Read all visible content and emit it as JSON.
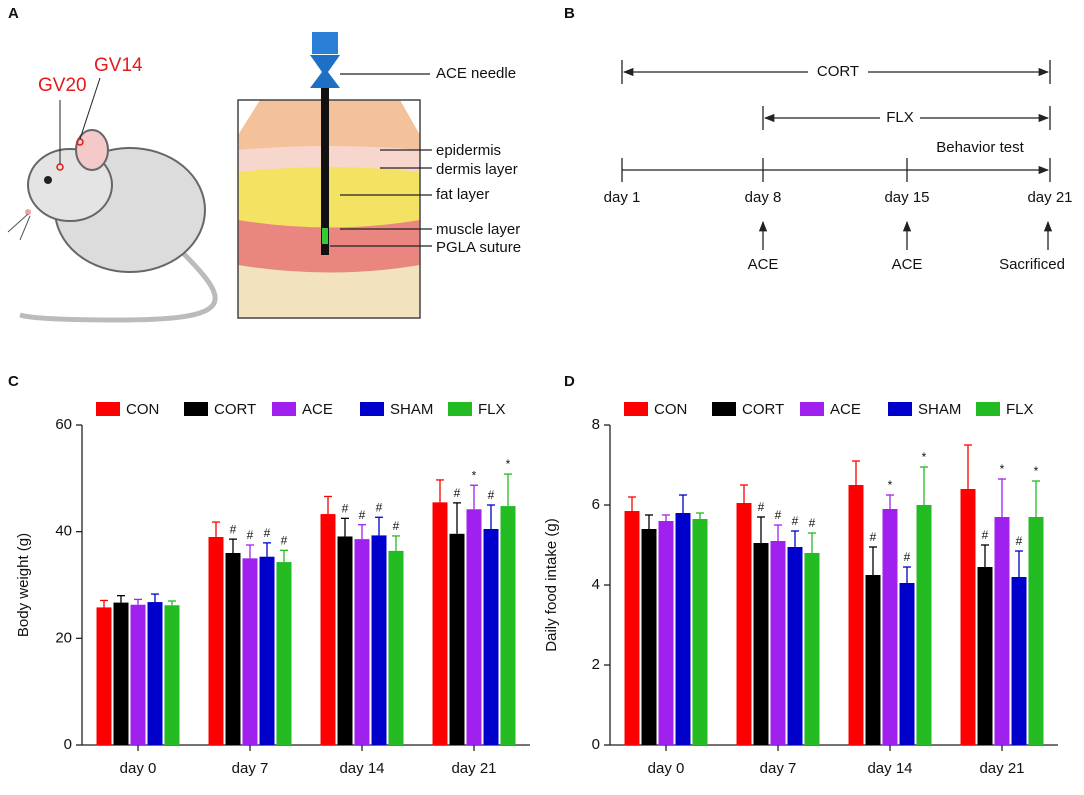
{
  "panel_labels": [
    "A",
    "B",
    "C",
    "D"
  ],
  "illustration": {
    "labels": [
      "GV20",
      "GV14",
      "ACE needle",
      "epidermis",
      "dermis layer",
      "fat layer",
      "muscle layer",
      "PGLA suture"
    ]
  },
  "timeline": {
    "spans": [
      "CORT",
      "FLX",
      "Behavior test"
    ],
    "days": [
      "day 1",
      "day 8",
      "day 15",
      "day 21"
    ],
    "events": [
      "ACE",
      "ACE",
      "Sacrificed"
    ]
  },
  "chart_data": [
    {
      "type": "bar",
      "ylabel": "Body weight (g)",
      "categories": [
        "day 0",
        "day 7",
        "day 14",
        "day 21"
      ],
      "ylim": [
        0,
        60
      ],
      "yticks": [
        0,
        20,
        40,
        60
      ],
      "series": [
        {
          "name": "CON",
          "color": "#ff0000",
          "values": [
            25.8,
            39,
            43.3,
            45.5
          ],
          "errors": [
            1.3,
            2.8,
            3.3,
            4.2
          ],
          "markers": [
            null,
            null,
            null,
            null
          ]
        },
        {
          "name": "CORT",
          "color": "#000000",
          "values": [
            26.7,
            36,
            39.1,
            39.6
          ],
          "errors": [
            1.3,
            2.6,
            3.4,
            5.8
          ],
          "markers": [
            null,
            "#",
            "#",
            "#"
          ]
        },
        {
          "name": "ACE",
          "color": "#a020f0",
          "values": [
            26.3,
            35,
            38.6,
            44.2
          ],
          "errors": [
            1,
            2.5,
            2.7,
            4.5
          ],
          "markers": [
            null,
            "#",
            "#",
            "*"
          ]
        },
        {
          "name": "SHAM",
          "color": "#0000cc",
          "values": [
            26.8,
            35.3,
            39.3,
            40.5
          ],
          "errors": [
            1.5,
            2.6,
            3.4,
            4.5
          ],
          "markers": [
            null,
            "#",
            "#",
            "#"
          ]
        },
        {
          "name": "FLX",
          "color": "#22bb22",
          "values": [
            26.2,
            34.3,
            36.4,
            44.8
          ],
          "errors": [
            0.8,
            2.2,
            2.8,
            6
          ],
          "markers": [
            null,
            "#",
            "#",
            "*"
          ]
        }
      ]
    },
    {
      "type": "bar",
      "ylabel": "Daily food intake (g)",
      "categories": [
        "day 0",
        "day 7",
        "day 14",
        "day 21"
      ],
      "ylim": [
        0,
        8
      ],
      "yticks": [
        0,
        2,
        4,
        6,
        8
      ],
      "series": [
        {
          "name": "CON",
          "color": "#ff0000",
          "values": [
            5.85,
            6.05,
            6.5,
            6.4
          ],
          "errors": [
            0.35,
            0.45,
            0.6,
            1.1
          ],
          "markers": [
            null,
            null,
            null,
            null
          ]
        },
        {
          "name": "CORT",
          "color": "#000000",
          "values": [
            5.4,
            5.05,
            4.25,
            4.45
          ],
          "errors": [
            0.35,
            0.65,
            0.7,
            0.55
          ],
          "markers": [
            null,
            "#",
            "#",
            "#"
          ]
        },
        {
          "name": "ACE",
          "color": "#a020f0",
          "values": [
            5.6,
            5.1,
            5.9,
            5.7
          ],
          "errors": [
            0.15,
            0.4,
            0.35,
            0.95
          ],
          "markers": [
            null,
            "#",
            "*",
            "*"
          ]
        },
        {
          "name": "SHAM",
          "color": "#0000cc",
          "values": [
            5.8,
            4.95,
            4.05,
            4.2
          ],
          "errors": [
            0.45,
            0.4,
            0.4,
            0.65
          ],
          "markers": [
            null,
            "#",
            "#",
            "#"
          ]
        },
        {
          "name": "FLX",
          "color": "#22bb22",
          "values": [
            5.65,
            4.8,
            6,
            5.7
          ],
          "errors": [
            0.15,
            0.5,
            0.95,
            0.9
          ],
          "markers": [
            null,
            "#",
            "*",
            "*"
          ]
        }
      ]
    }
  ]
}
